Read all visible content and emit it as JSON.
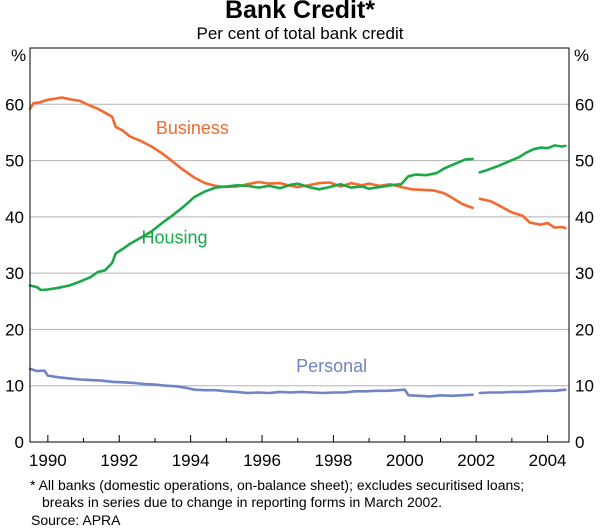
{
  "chart_data": {
    "type": "line",
    "title": "Bank Credit*",
    "subtitle": "Per cent of total bank credit",
    "ylabel_left": "%",
    "ylabel_right": "%",
    "ylim": [
      0,
      70
    ],
    "yticks": [
      0,
      10,
      20,
      30,
      40,
      50,
      60
    ],
    "xlim": [
      1989.5,
      2004.6
    ],
    "xticks": [
      1990,
      1992,
      1994,
      1996,
      1998,
      2000,
      2002,
      2004
    ],
    "colors": {
      "Business": "#f26a32",
      "Housing": "#1aa849",
      "Personal": "#6f83c5"
    },
    "series": [
      {
        "name": "Business",
        "label": "Business",
        "segments": [
          [
            [
              1989.5,
              59.2
            ],
            [
              1989.6,
              60.2
            ],
            [
              1989.75,
              60.3
            ],
            [
              1990.0,
              60.8
            ],
            [
              1990.2,
              61.0
            ],
            [
              1990.4,
              61.2
            ],
            [
              1990.6,
              60.9
            ],
            [
              1990.9,
              60.6
            ],
            [
              1991.1,
              60.0
            ],
            [
              1991.4,
              59.2
            ],
            [
              1991.6,
              58.5
            ],
            [
              1991.8,
              57.8
            ],
            [
              1991.9,
              56.0
            ],
            [
              1992.1,
              55.3
            ],
            [
              1992.3,
              54.3
            ],
            [
              1992.6,
              53.5
            ],
            [
              1992.9,
              52.5
            ],
            [
              1993.2,
              51.3
            ],
            [
              1993.5,
              49.8
            ],
            [
              1993.8,
              48.3
            ],
            [
              1994.1,
              47.0
            ],
            [
              1994.4,
              46.0
            ],
            [
              1994.7,
              45.5
            ],
            [
              1995.0,
              45.3
            ],
            [
              1995.3,
              45.4
            ],
            [
              1995.6,
              45.8
            ],
            [
              1995.9,
              46.2
            ],
            [
              1996.2,
              45.9
            ],
            [
              1996.5,
              46.0
            ],
            [
              1996.8,
              45.5
            ],
            [
              1997.0,
              45.3
            ],
            [
              1997.3,
              45.6
            ],
            [
              1997.6,
              46.0
            ],
            [
              1997.9,
              46.1
            ],
            [
              1998.2,
              45.4
            ],
            [
              1998.5,
              46.0
            ],
            [
              1998.8,
              45.6
            ],
            [
              1999.0,
              45.9
            ],
            [
              1999.3,
              45.5
            ],
            [
              1999.6,
              45.8
            ],
            [
              1999.9,
              45.3
            ],
            [
              2000.2,
              44.9
            ],
            [
              2000.5,
              44.8
            ],
            [
              2000.8,
              44.7
            ],
            [
              2001.1,
              44.2
            ],
            [
              2001.3,
              43.5
            ],
            [
              2001.6,
              42.3
            ],
            [
              2001.9,
              41.6
            ]
          ],
          [
            [
              2002.1,
              43.2
            ],
            [
              2002.4,
              42.8
            ],
            [
              2002.7,
              41.8
            ],
            [
              2003.0,
              40.8
            ],
            [
              2003.3,
              40.2
            ],
            [
              2003.5,
              39.0
            ],
            [
              2003.8,
              38.6
            ],
            [
              2004.0,
              38.9
            ],
            [
              2004.2,
              38.1
            ],
            [
              2004.4,
              38.2
            ],
            [
              2004.5,
              38.0
            ]
          ]
        ]
      },
      {
        "name": "Housing",
        "label": "Housing",
        "segments": [
          [
            [
              1989.5,
              27.8
            ],
            [
              1989.7,
              27.5
            ],
            [
              1989.8,
              27.0
            ],
            [
              1990.0,
              27.1
            ],
            [
              1990.3,
              27.4
            ],
            [
              1990.6,
              27.8
            ],
            [
              1990.9,
              28.5
            ],
            [
              1991.2,
              29.3
            ],
            [
              1991.4,
              30.2
            ],
            [
              1991.6,
              30.5
            ],
            [
              1991.8,
              31.8
            ],
            [
              1991.9,
              33.5
            ],
            [
              1992.1,
              34.3
            ],
            [
              1992.3,
              35.2
            ],
            [
              1992.6,
              36.3
            ],
            [
              1992.9,
              37.4
            ],
            [
              1993.2,
              38.9
            ],
            [
              1993.5,
              40.3
            ],
            [
              1993.8,
              41.8
            ],
            [
              1994.1,
              43.5
            ],
            [
              1994.4,
              44.5
            ],
            [
              1994.7,
              45.2
            ],
            [
              1995.0,
              45.4
            ],
            [
              1995.3,
              45.6
            ],
            [
              1995.6,
              45.5
            ],
            [
              1995.9,
              45.2
            ],
            [
              1996.2,
              45.5
            ],
            [
              1996.5,
              45.1
            ],
            [
              1996.8,
              45.7
            ],
            [
              1997.0,
              45.9
            ],
            [
              1997.3,
              45.3
            ],
            [
              1997.6,
              44.9
            ],
            [
              1997.9,
              45.3
            ],
            [
              1998.2,
              45.8
            ],
            [
              1998.5,
              45.2
            ],
            [
              1998.8,
              45.4
            ],
            [
              1999.0,
              45.0
            ],
            [
              1999.3,
              45.3
            ],
            [
              1999.6,
              45.6
            ],
            [
              1999.9,
              45.8
            ],
            [
              2000.1,
              47.2
            ],
            [
              2000.3,
              47.5
            ],
            [
              2000.6,
              47.4
            ],
            [
              2000.9,
              47.8
            ],
            [
              2001.1,
              48.6
            ],
            [
              2001.4,
              49.4
            ],
            [
              2001.7,
              50.2
            ],
            [
              2001.9,
              50.3
            ]
          ],
          [
            [
              2002.1,
              47.9
            ],
            [
              2002.3,
              48.3
            ],
            [
              2002.6,
              49.0
            ],
            [
              2002.9,
              49.8
            ],
            [
              2003.2,
              50.6
            ],
            [
              2003.4,
              51.4
            ],
            [
              2003.6,
              52.0
            ],
            [
              2003.8,
              52.3
            ],
            [
              2004.0,
              52.2
            ],
            [
              2004.2,
              52.7
            ],
            [
              2004.4,
              52.5
            ],
            [
              2004.5,
              52.6
            ]
          ]
        ]
      },
      {
        "name": "Personal",
        "label": "Personal",
        "segments": [
          [
            [
              1989.5,
              13.0
            ],
            [
              1989.7,
              12.6
            ],
            [
              1989.9,
              12.7
            ],
            [
              1990.0,
              11.8
            ],
            [
              1990.3,
              11.5
            ],
            [
              1990.6,
              11.3
            ],
            [
              1990.9,
              11.1
            ],
            [
              1991.2,
              11.0
            ],
            [
              1991.5,
              10.9
            ],
            [
              1991.8,
              10.7
            ],
            [
              1992.1,
              10.6
            ],
            [
              1992.4,
              10.5
            ],
            [
              1992.7,
              10.3
            ],
            [
              1993.0,
              10.2
            ],
            [
              1993.3,
              10.0
            ],
            [
              1993.6,
              9.9
            ],
            [
              1993.9,
              9.6
            ],
            [
              1994.1,
              9.3
            ],
            [
              1994.4,
              9.2
            ],
            [
              1994.7,
              9.2
            ],
            [
              1995.0,
              9.0
            ],
            [
              1995.3,
              8.9
            ],
            [
              1995.6,
              8.7
            ],
            [
              1995.9,
              8.8
            ],
            [
              1996.2,
              8.7
            ],
            [
              1996.5,
              8.9
            ],
            [
              1996.8,
              8.8
            ],
            [
              1997.1,
              8.9
            ],
            [
              1997.4,
              8.8
            ],
            [
              1997.7,
              8.7
            ],
            [
              1998.0,
              8.8
            ],
            [
              1998.3,
              8.8
            ],
            [
              1998.6,
              9.0
            ],
            [
              1998.9,
              9.0
            ],
            [
              1999.2,
              9.1
            ],
            [
              1999.5,
              9.1
            ],
            [
              1999.8,
              9.2
            ],
            [
              2000.0,
              9.3
            ],
            [
              2000.1,
              8.3
            ],
            [
              2000.4,
              8.2
            ],
            [
              2000.7,
              8.1
            ],
            [
              2001.0,
              8.3
            ],
            [
              2001.3,
              8.2
            ],
            [
              2001.6,
              8.3
            ],
            [
              2001.9,
              8.4
            ]
          ],
          [
            [
              2002.1,
              8.7
            ],
            [
              2002.4,
              8.8
            ],
            [
              2002.7,
              8.8
            ],
            [
              2003.0,
              8.9
            ],
            [
              2003.3,
              8.9
            ],
            [
              2003.6,
              9.0
            ],
            [
              2003.9,
              9.1
            ],
            [
              2004.2,
              9.1
            ],
            [
              2004.5,
              9.3
            ]
          ]
        ]
      }
    ],
    "annotations": [
      {
        "text": "Business",
        "series": "Business",
        "x": 1994.05,
        "y": 54.7
      },
      {
        "text": "Housing",
        "series": "Housing",
        "x": 1993.55,
        "y": 35.3
      },
      {
        "text": "Personal",
        "series": "Personal",
        "x": 1997.95,
        "y": 12.4
      }
    ],
    "footnote_lines": [
      "* All banks (domestic operations, on-balance sheet); excludes securitised loans;",
      "breaks in series due to change in reporting forms in March 2002."
    ],
    "source": "Source: APRA"
  }
}
